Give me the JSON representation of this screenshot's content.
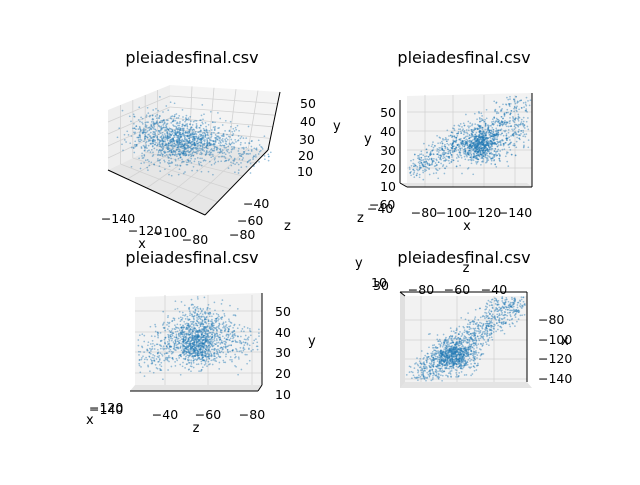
{
  "figure": {
    "background": "#ffffff"
  },
  "chart_data": [
    {
      "type": "scatter",
      "title": "pleiadesfinal.csv",
      "view": "perspective",
      "xlabel": "x",
      "ylabel": "y",
      "zlabel": "z",
      "x_ticks": [
        "−140",
        "−120",
        "−100",
        "−80"
      ],
      "y_ticks": [
        "50",
        "40",
        "30",
        "20",
        "10"
      ],
      "z_ticks": [
        "−40",
        "−60",
        "−80"
      ],
      "xlim": [
        -150,
        -75
      ],
      "ylim": [
        5,
        58
      ],
      "zlim": [
        -90,
        -30
      ],
      "color": "#1f77b4"
    },
    {
      "type": "scatter",
      "title": "pleiadesfinal.csv",
      "view": "x-y",
      "xlabel": "x",
      "ylabel": "y",
      "zlabel": "z",
      "x_ticks": [
        "−80",
        "−100",
        "−120",
        "−140"
      ],
      "y_ticks": [
        "50",
        "40",
        "30",
        "20",
        "10"
      ],
      "z_ticks": [
        "−60",
        "−40"
      ],
      "color": "#1f77b4"
    },
    {
      "type": "scatter",
      "title": "pleiadesfinal.csv",
      "view": "z-y",
      "xlabel": "x",
      "ylabel": "y",
      "zlabel": "z",
      "x_ticks": [
        "−120",
        "−140"
      ],
      "y_ticks": [
        "50",
        "40",
        "30",
        "20",
        "10"
      ],
      "z_ticks": [
        "−40",
        "−60",
        "−80"
      ],
      "color": "#1f77b4"
    },
    {
      "type": "scatter",
      "title": "pleiadesfinal.csv",
      "view": "z-x",
      "xlabel": "x",
      "ylabel": "y",
      "zlabel": "z",
      "x_ticks": [
        "−80",
        "−100",
        "−120",
        "−140"
      ],
      "y_ticks": [
        "10",
        "30"
      ],
      "z_ticks": [
        "−80",
        "−60",
        "−40"
      ],
      "color": "#1f77b4"
    }
  ]
}
